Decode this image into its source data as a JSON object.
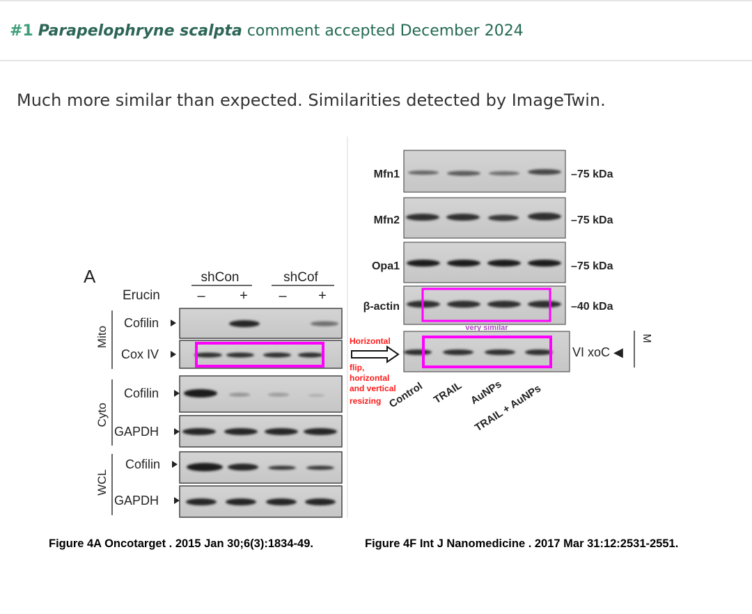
{
  "header": {
    "number": "#1",
    "species": "Parapelophryne scalpta",
    "status": "comment accepted December 2024"
  },
  "body_text": "Much more similar than expected. Similarities detected by ImageTwin.",
  "left_panel": {
    "panel_letter": "A",
    "groups": [
      "shCon",
      "shCof"
    ],
    "treatment_label": "Erucin",
    "treatment_signs": [
      "–",
      "+",
      "–",
      "+"
    ],
    "sections": [
      "Mito",
      "Cyto",
      "WCL"
    ],
    "rows": [
      "Cofilin",
      "Cox IV",
      "Cofilin",
      "GAPDH",
      "Cofilin",
      "GAPDH"
    ]
  },
  "right_panel": {
    "rows": [
      {
        "label": "Mfn1",
        "size": "–75 kDa"
      },
      {
        "label": "Mfn2",
        "size": "–75 kDa"
      },
      {
        "label": "Opa1",
        "size": "–75 kDa"
      },
      {
        "label": "β-actin",
        "size": "–40 kDa"
      }
    ],
    "flipped_label": "VI xoC ◀",
    "side_letter": "M",
    "lanes": [
      "Control",
      "TRAIL",
      "AuNPs",
      "TRAIL + AuNPs"
    ]
  },
  "annotations": {
    "transform_lines": [
      "Horizontal",
      "flip,",
      "horizontal",
      "and vertical",
      "resizing"
    ],
    "similarity_note": "very similar",
    "highlight_color": "#ff00ff",
    "note_color": "#ff1a1a"
  },
  "captions": {
    "left": "Figure 4A Oncotarget . 2015 Jan 30;6(3):1834-49.",
    "right": "Figure 4F Int J Nanomedicine . 2017 Mar 31:12:2531-2551."
  }
}
